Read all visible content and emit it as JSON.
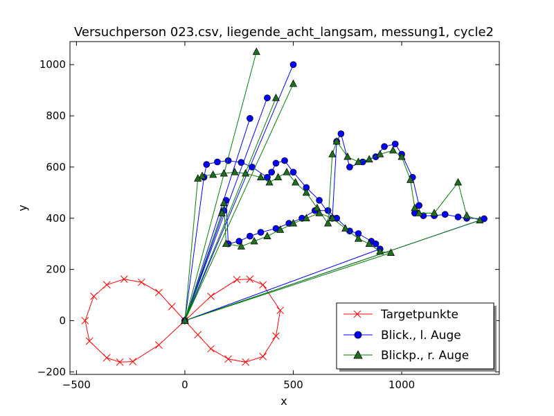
{
  "chart_data": {
    "type": "scatter",
    "title": "Versuchperson 023.csv, liegende_acht_langsam, messung1, cycle2",
    "xlabel": "x",
    "ylabel": "y",
    "xlim": [
      -530,
      1450
    ],
    "ylim": [
      -210,
      1090
    ],
    "xticks": [
      -500,
      0,
      500,
      1000
    ],
    "yticks": [
      -200,
      0,
      200,
      400,
      600,
      800,
      1000
    ],
    "grid": false,
    "legend_position": "lower-right",
    "colors": {
      "target": "#ff0000",
      "left": "#0000ff",
      "right": "#007f00",
      "right_marker": "#1f6f1f"
    },
    "series": [
      {
        "name": "Targetpunkte",
        "marker": "x",
        "color": "#ff0000",
        "x": [
          0,
          120,
          240,
          300,
          360,
          440,
          420,
          360,
          280,
          200,
          120,
          60,
          0,
          -60,
          -120,
          -200,
          -280,
          -360,
          -420,
          -460,
          -440,
          -360,
          -300,
          -240,
          -120,
          0
        ],
        "y": [
          0,
          95,
          160,
          162,
          140,
          40,
          -60,
          -140,
          -162,
          -150,
          -110,
          -55,
          0,
          55,
          110,
          150,
          162,
          140,
          95,
          0,
          -80,
          -145,
          -162,
          -160,
          -95,
          0
        ]
      },
      {
        "name": "Blick., l. Auge",
        "marker": "o",
        "color": "#0000ff",
        "x": [
          0,
          500,
          0,
          380,
          0,
          300,
          0,
          88,
          100,
          150,
          200,
          260,
          310,
          380,
          400,
          420,
          460,
          500,
          560,
          620,
          680,
          700,
          720,
          760,
          820,
          880,
          920,
          970,
          1000,
          1050,
          1080,
          1060,
          1100,
          1150,
          1200,
          1260,
          1300,
          1380,
          0,
          180,
          190,
          200,
          250,
          300,
          350,
          420,
          480,
          540,
          600,
          660,
          700,
          760,
          800,
          860,
          880,
          900,
          0
        ],
        "y": [
          0,
          1000,
          0,
          870,
          0,
          790,
          0,
          560,
          610,
          620,
          625,
          618,
          600,
          560,
          580,
          615,
          625,
          580,
          520,
          470,
          400,
          700,
          730,
          600,
          620,
          640,
          680,
          690,
          650,
          560,
          450,
          420,
          410,
          410,
          415,
          405,
          400,
          398,
          0,
          430,
          470,
          300,
          310,
          330,
          345,
          360,
          380,
          400,
          430,
          430,
          400,
          350,
          340,
          310,
          300,
          280,
          0
        ]
      },
      {
        "name": "Blickp., r. Auge",
        "marker": "^",
        "color": "#007f00",
        "x": [
          0,
          330,
          0,
          500,
          0,
          420,
          0,
          60,
          80,
          130,
          180,
          230,
          280,
          350,
          390,
          430,
          470,
          510,
          560,
          610,
          660,
          680,
          700,
          750,
          800,
          850,
          900,
          960,
          1000,
          1040,
          1060,
          1080,
          1150,
          1260,
          1300,
          1360,
          0,
          170,
          180,
          190,
          260,
          320,
          380,
          440,
          500,
          560,
          620,
          680,
          740,
          800,
          850,
          900,
          950,
          0
        ],
        "y": [
          0,
          1050,
          0,
          925,
          0,
          870,
          0,
          555,
          565,
          570,
          575,
          580,
          575,
          560,
          540,
          560,
          580,
          540,
          500,
          440,
          380,
          650,
          700,
          640,
          620,
          630,
          650,
          665,
          640,
          550,
          440,
          420,
          420,
          540,
          410,
          392,
          0,
          420,
          460,
          300,
          290,
          310,
          330,
          355,
          380,
          400,
          420,
          400,
          360,
          320,
          300,
          270,
          265,
          0
        ]
      }
    ]
  }
}
